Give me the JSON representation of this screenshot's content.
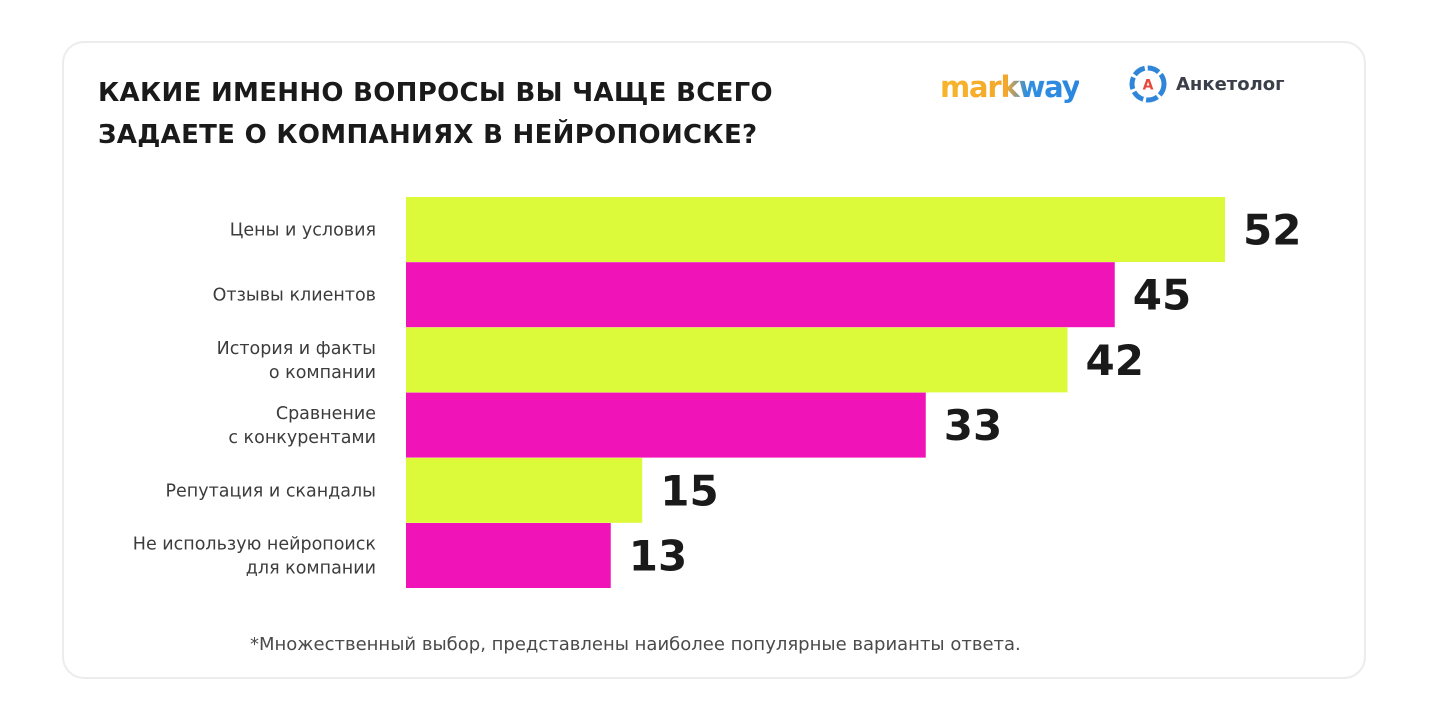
{
  "header": {
    "title_line1": "КАКИЕ ИМЕННО ВОПРОСЫ ВЫ ЧАЩЕ ВСЕГО",
    "title_line2": "ЗАДАЕТЕ О КОМПАНИЯХ В НЕЙРОПОИСКЕ?",
    "logo_markway": "markway",
    "logo_anketolog": "Анкетолог",
    "logo_anketolog_letter": "A"
  },
  "footnote": "*Множественный выбор, представлены наиболее популярные варианты ответа.",
  "colors": {
    "lime": "#dcfa3a",
    "magenta": "#ef13b8",
    "text": "#1a1a1a",
    "label": "#3c3c3c"
  },
  "chart_data": {
    "type": "bar",
    "orientation": "horizontal",
    "categories": [
      [
        "Цены и условия"
      ],
      [
        "Отзывы клиентов"
      ],
      [
        "История и факты",
        "о компании"
      ],
      [
        "Сравнение",
        "с конкурентами"
      ],
      [
        "Репутация и скандалы"
      ],
      [
        "Не использую нейропоиск",
        "для компании"
      ]
    ],
    "values": [
      52,
      45,
      42,
      33,
      15,
      13
    ],
    "bar_colors": [
      "#dcfa3a",
      "#ef13b8",
      "#dcfa3a",
      "#ef13b8",
      "#dcfa3a",
      "#ef13b8"
    ],
    "xlim": [
      0,
      52
    ],
    "grid": false,
    "legend": "none"
  }
}
